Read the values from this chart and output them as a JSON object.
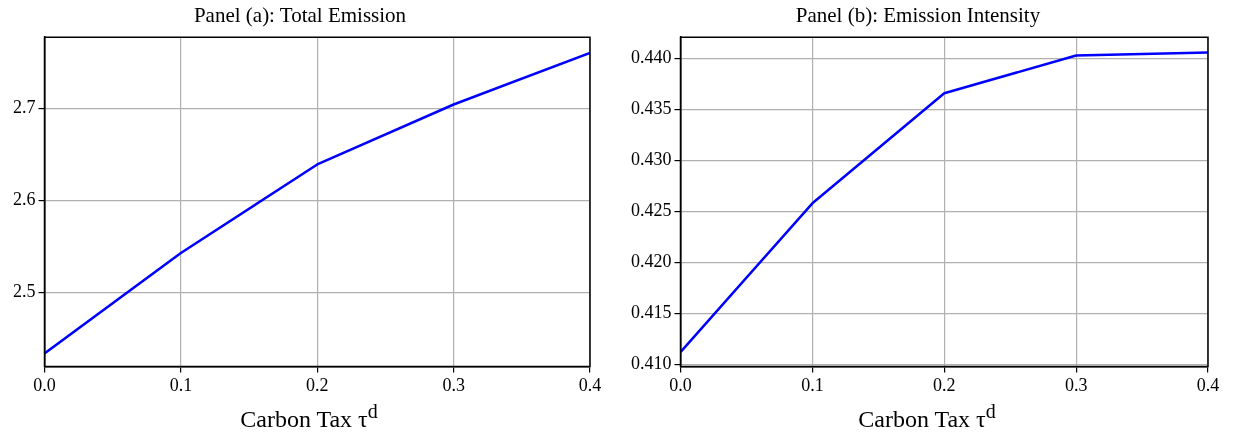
{
  "chart_data": [
    {
      "type": "line",
      "title": "Panel (a): Total Emission",
      "xlabel": "Carbon Tax τ$^{d}$",
      "x": [
        0,
        0.1,
        0.2,
        0.3,
        0.4
      ],
      "series": [
        {
          "color": "#0000ff",
          "values": [
            2.434,
            2.543,
            2.639,
            2.704,
            2.76
          ]
        }
      ],
      "xlim": [
        0,
        0.4
      ],
      "xticks": [
        {
          "value": 0,
          "label": "0.0"
        },
        0.1,
        0.2,
        0.3,
        0.4
      ],
      "ylim": [
        2.42,
        2.777
      ],
      "yticks": [
        2.5,
        2.6,
        2.7
      ],
      "grid": true,
      "legend": false,
      "marker": "none",
      "line_style": "solid"
    },
    {
      "type": "line",
      "title": "Panel (b): Emission Intensity",
      "xlabel": "Carbon Tax τ$^{d}$",
      "x": [
        0,
        0.1,
        0.2,
        0.3,
        0.4
      ],
      "series": [
        {
          "color": "#0000ff",
          "values": [
            0.4112,
            0.4258,
            0.4366,
            0.4403,
            0.4406
          ]
        }
      ],
      "xlim": [
        0,
        0.4
      ],
      "xticks": [
        {
          "value": 0,
          "label": "0.0"
        },
        0.1,
        0.2,
        0.3,
        0.4
      ],
      "ylim": [
        0.4098,
        0.4421
      ],
      "yticks": [
        {
          "value": 0.41,
          "label": "0.410"
        },
        {
          "value": 0.415,
          "label": "0.415"
        },
        {
          "value": 0.42,
          "label": "0.420"
        },
        {
          "value": 0.425,
          "label": "0.425"
        },
        {
          "value": 0.43,
          "label": "0.430"
        },
        {
          "value": 0.435,
          "label": "0.435"
        },
        {
          "value": 0.44,
          "label": "0.440"
        }
      ],
      "grid": true,
      "legend": false,
      "marker": "none",
      "line_style": "solid"
    }
  ]
}
